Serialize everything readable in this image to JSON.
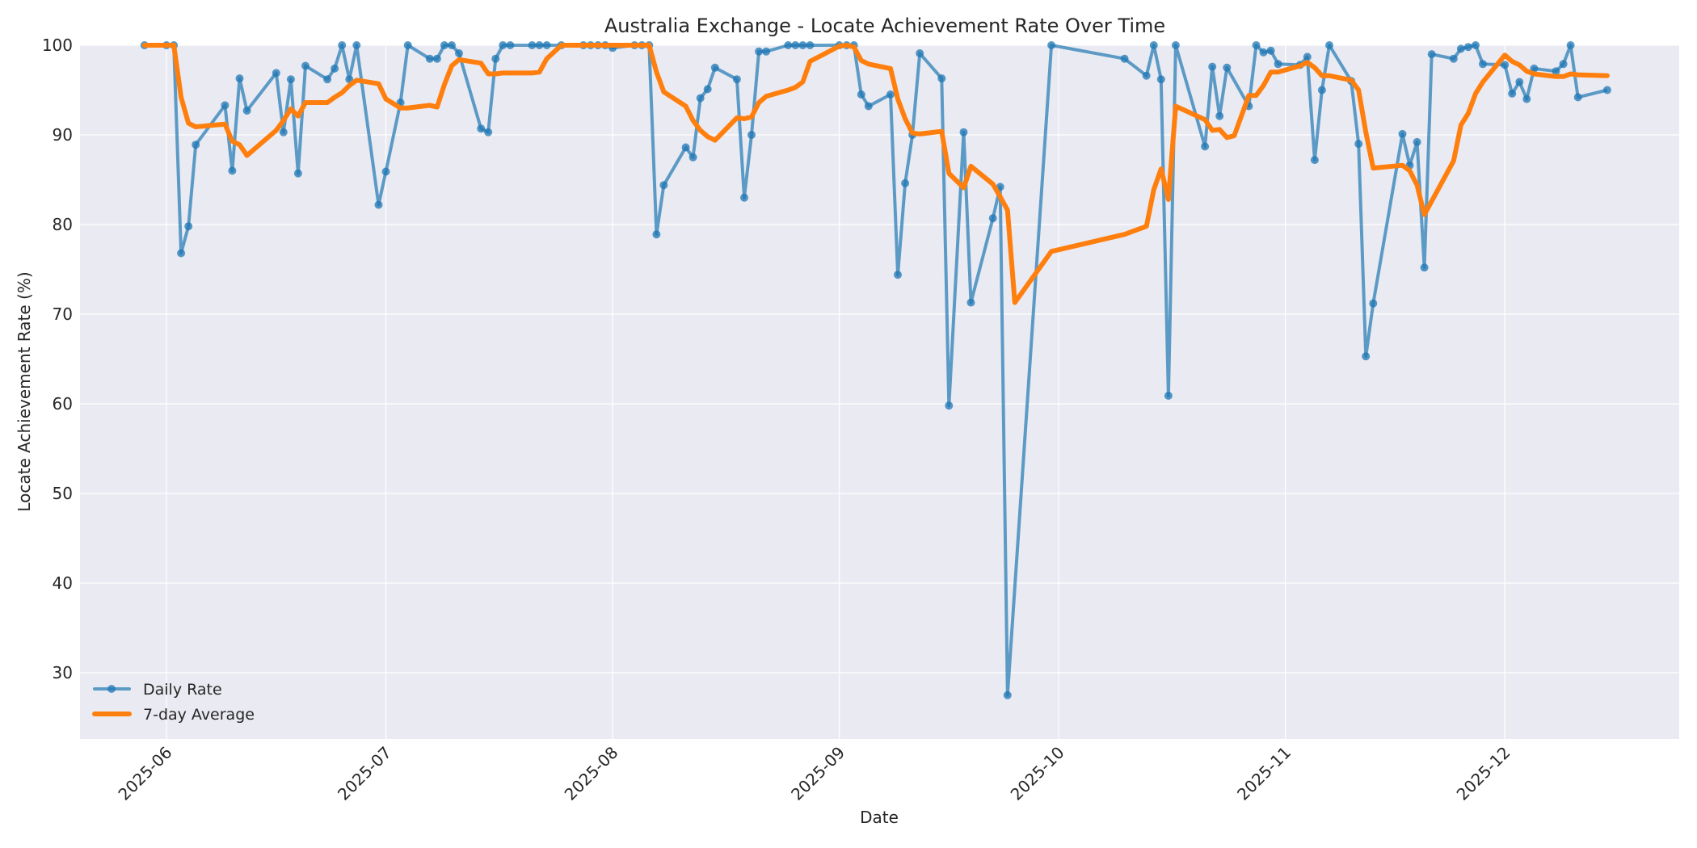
{
  "chart_data": {
    "type": "line",
    "title": "Australia Exchange - Locate Achievement Rate Over Time",
    "xlabel": "Date",
    "ylabel": "Locate Achievement Rate (%)",
    "ylim": [
      22.6,
      100
    ],
    "yticks": [
      30,
      40,
      50,
      60,
      70,
      80,
      90,
      100
    ],
    "xticks": [
      "2025-06",
      "2025-07",
      "2025-08",
      "2025-09",
      "2025-10",
      "2025-11",
      "2025-12"
    ],
    "grid": true,
    "legend_position": "lower left",
    "colors": {
      "daily": "#1f77b4",
      "average": "#ff7f0e",
      "background": "#eaeaf2",
      "grid": "#ffffff"
    },
    "series": [
      {
        "name": "Daily Rate",
        "style": "line+markers",
        "points": [
          [
            "2025-05-29",
            100
          ],
          [
            "2025-06-01",
            100
          ],
          [
            "2025-06-02",
            100
          ],
          [
            "2025-06-03",
            76.8
          ],
          [
            "2025-06-04",
            79.8
          ],
          [
            "2025-06-05",
            88.9
          ],
          [
            "2025-06-09",
            93.3
          ],
          [
            "2025-06-10",
            86.0
          ],
          [
            "2025-06-11",
            96.3
          ],
          [
            "2025-06-12",
            92.7
          ],
          [
            "2025-06-16",
            96.9
          ],
          [
            "2025-06-17",
            90.3
          ],
          [
            "2025-06-18",
            96.2
          ],
          [
            "2025-06-19",
            85.7
          ],
          [
            "2025-06-20",
            97.7
          ],
          [
            "2025-06-23",
            96.2
          ],
          [
            "2025-06-24",
            97.4
          ],
          [
            "2025-06-25",
            100
          ],
          [
            "2025-06-26",
            96.2
          ],
          [
            "2025-06-27",
            100
          ],
          [
            "2025-06-30",
            82.2
          ],
          [
            "2025-07-01",
            85.9
          ],
          [
            "2025-07-03",
            93.6
          ],
          [
            "2025-07-04",
            100
          ],
          [
            "2025-07-07",
            98.5
          ],
          [
            "2025-07-08",
            98.5
          ],
          [
            "2025-07-09",
            100
          ],
          [
            "2025-07-10",
            100
          ],
          [
            "2025-07-11",
            99.1
          ],
          [
            "2025-07-14",
            90.7
          ],
          [
            "2025-07-15",
            90.3
          ],
          [
            "2025-07-16",
            98.5
          ],
          [
            "2025-07-17",
            100
          ],
          [
            "2025-07-18",
            100
          ],
          [
            "2025-07-21",
            100
          ],
          [
            "2025-07-22",
            100
          ],
          [
            "2025-07-23",
            100
          ],
          [
            "2025-07-25",
            100
          ],
          [
            "2025-07-28",
            100
          ],
          [
            "2025-07-29",
            100
          ],
          [
            "2025-07-30",
            100
          ],
          [
            "2025-07-31",
            100
          ],
          [
            "2025-08-01",
            99.7
          ],
          [
            "2025-08-04",
            100
          ],
          [
            "2025-08-05",
            100
          ],
          [
            "2025-08-06",
            100
          ],
          [
            "2025-08-07",
            78.9
          ],
          [
            "2025-08-08",
            84.4
          ],
          [
            "2025-08-11",
            88.6
          ],
          [
            "2025-08-12",
            87.5
          ],
          [
            "2025-08-13",
            94.1
          ],
          [
            "2025-08-14",
            95.1
          ],
          [
            "2025-08-15",
            97.5
          ],
          [
            "2025-08-18",
            96.2
          ],
          [
            "2025-08-19",
            83.0
          ],
          [
            "2025-08-20",
            90.0
          ],
          [
            "2025-08-21",
            99.3
          ],
          [
            "2025-08-22",
            99.3
          ],
          [
            "2025-08-25",
            100
          ],
          [
            "2025-08-26",
            100
          ],
          [
            "2025-08-27",
            100
          ],
          [
            "2025-08-28",
            100
          ],
          [
            "2025-09-01",
            100
          ],
          [
            "2025-09-02",
            100
          ],
          [
            "2025-09-03",
            100
          ],
          [
            "2025-09-04",
            94.5
          ],
          [
            "2025-09-05",
            93.2
          ],
          [
            "2025-09-08",
            94.5
          ],
          [
            "2025-09-09",
            74.4
          ],
          [
            "2025-09-10",
            84.6
          ],
          [
            "2025-09-11",
            90.0
          ],
          [
            "2025-09-12",
            99.1
          ],
          [
            "2025-09-15",
            96.3
          ],
          [
            "2025-09-16",
            59.8
          ],
          [
            "2025-09-18",
            90.3
          ],
          [
            "2025-09-19",
            71.3
          ],
          [
            "2025-09-22",
            80.7
          ],
          [
            "2025-09-23",
            84.2
          ],
          [
            "2025-09-24",
            27.5
          ],
          [
            "2025-09-30",
            100
          ],
          [
            "2025-10-10",
            98.5
          ],
          [
            "2025-10-13",
            96.6
          ],
          [
            "2025-10-14",
            100
          ],
          [
            "2025-10-15",
            96.2
          ],
          [
            "2025-10-16",
            60.9
          ],
          [
            "2025-10-17",
            100
          ],
          [
            "2025-10-21",
            88.7
          ],
          [
            "2025-10-22",
            97.6
          ],
          [
            "2025-10-23",
            92.1
          ],
          [
            "2025-10-24",
            97.5
          ],
          [
            "2025-10-27",
            93.2
          ],
          [
            "2025-10-28",
            100
          ],
          [
            "2025-10-29",
            99.2
          ],
          [
            "2025-10-30",
            99.4
          ],
          [
            "2025-10-31",
            97.9
          ],
          [
            "2025-11-03",
            97.8
          ],
          [
            "2025-11-04",
            98.7
          ],
          [
            "2025-11-05",
            87.2
          ],
          [
            "2025-11-06",
            95.0
          ],
          [
            "2025-11-07",
            100
          ],
          [
            "2025-11-10",
            96.0
          ],
          [
            "2025-11-11",
            89.0
          ],
          [
            "2025-11-12",
            65.3
          ],
          [
            "2025-11-13",
            71.2
          ],
          [
            "2025-11-17",
            90.1
          ],
          [
            "2025-11-18",
            86.6
          ],
          [
            "2025-11-19",
            89.2
          ],
          [
            "2025-11-20",
            75.2
          ],
          [
            "2025-11-21",
            99.0
          ],
          [
            "2025-11-24",
            98.5
          ],
          [
            "2025-11-25",
            99.6
          ],
          [
            "2025-11-26",
            99.8
          ],
          [
            "2025-11-27",
            100
          ],
          [
            "2025-11-28",
            97.9
          ],
          [
            "2025-12-01",
            97.8
          ],
          [
            "2025-12-02",
            94.6
          ],
          [
            "2025-12-03",
            95.9
          ],
          [
            "2025-12-04",
            94.0
          ],
          [
            "2025-12-05",
            97.4
          ],
          [
            "2025-12-08",
            97.1
          ],
          [
            "2025-12-09",
            97.9
          ],
          [
            "2025-12-10",
            100
          ],
          [
            "2025-12-11",
            94.2
          ],
          [
            "2025-12-15",
            95.0
          ]
        ]
      },
      {
        "name": "7-day Average",
        "style": "line",
        "points": [
          [
            "2025-05-29",
            100
          ],
          [
            "2025-06-01",
            100
          ],
          [
            "2025-06-02",
            100
          ],
          [
            "2025-06-03",
            94.2
          ],
          [
            "2025-06-04",
            91.3
          ],
          [
            "2025-06-05",
            90.9
          ],
          [
            "2025-06-09",
            91.2
          ],
          [
            "2025-06-10",
            89.3
          ],
          [
            "2025-06-11",
            88.9
          ],
          [
            "2025-06-12",
            87.7
          ],
          [
            "2025-06-16",
            90.5
          ],
          [
            "2025-06-17",
            91.6
          ],
          [
            "2025-06-18",
            92.9
          ],
          [
            "2025-06-19",
            92.1
          ],
          [
            "2025-06-20",
            93.6
          ],
          [
            "2025-06-23",
            93.6
          ],
          [
            "2025-06-24",
            94.2
          ],
          [
            "2025-06-25",
            94.7
          ],
          [
            "2025-06-26",
            95.5
          ],
          [
            "2025-06-27",
            96.1
          ],
          [
            "2025-06-30",
            95.7
          ],
          [
            "2025-07-01",
            94.0
          ],
          [
            "2025-07-03",
            93.0
          ],
          [
            "2025-07-04",
            93.0
          ],
          [
            "2025-07-07",
            93.3
          ],
          [
            "2025-07-08",
            93.1
          ],
          [
            "2025-07-09",
            95.6
          ],
          [
            "2025-07-10",
            97.7
          ],
          [
            "2025-07-11",
            98.4
          ],
          [
            "2025-07-14",
            98.0
          ],
          [
            "2025-07-15",
            96.8
          ],
          [
            "2025-07-16",
            96.8
          ],
          [
            "2025-07-17",
            96.9
          ],
          [
            "2025-07-18",
            96.9
          ],
          [
            "2025-07-21",
            96.9
          ],
          [
            "2025-07-22",
            97.0
          ],
          [
            "2025-07-23",
            98.5
          ],
          [
            "2025-07-25",
            100
          ],
          [
            "2025-07-28",
            100
          ],
          [
            "2025-07-29",
            100
          ],
          [
            "2025-07-30",
            100
          ],
          [
            "2025-07-31",
            100
          ],
          [
            "2025-08-01",
            100
          ],
          [
            "2025-08-04",
            100
          ],
          [
            "2025-08-05",
            100
          ],
          [
            "2025-08-06",
            100
          ],
          [
            "2025-08-07",
            97.0
          ],
          [
            "2025-08-08",
            94.8
          ],
          [
            "2025-08-11",
            93.2
          ],
          [
            "2025-08-12",
            91.6
          ],
          [
            "2025-08-13",
            90.5
          ],
          [
            "2025-08-14",
            89.8
          ],
          [
            "2025-08-15",
            89.4
          ],
          [
            "2025-08-18",
            91.9
          ],
          [
            "2025-08-19",
            91.8
          ],
          [
            "2025-08-20",
            92.0
          ],
          [
            "2025-08-21",
            93.6
          ],
          [
            "2025-08-22",
            94.3
          ],
          [
            "2025-08-25",
            95.0
          ],
          [
            "2025-08-26",
            95.3
          ],
          [
            "2025-08-27",
            95.9
          ],
          [
            "2025-08-28",
            98.2
          ],
          [
            "2025-09-01",
            99.9
          ],
          [
            "2025-09-02",
            100
          ],
          [
            "2025-09-03",
            99.8
          ],
          [
            "2025-09-04",
            98.3
          ],
          [
            "2025-09-05",
            97.9
          ],
          [
            "2025-09-08",
            97.4
          ],
          [
            "2025-09-09",
            94.0
          ],
          [
            "2025-09-10",
            91.8
          ],
          [
            "2025-09-11",
            90.2
          ],
          [
            "2025-09-12",
            90.1
          ],
          [
            "2025-09-15",
            90.4
          ],
          [
            "2025-09-16",
            85.7
          ],
          [
            "2025-09-18",
            84.1
          ],
          [
            "2025-09-19",
            86.5
          ],
          [
            "2025-09-22",
            84.5
          ],
          [
            "2025-09-23",
            83.1
          ],
          [
            "2025-09-24",
            81.6
          ],
          [
            "2025-09-25",
            71.3
          ],
          [
            "2025-09-30",
            77.0
          ],
          [
            "2025-10-10",
            78.9
          ],
          [
            "2025-10-13",
            79.8
          ],
          [
            "2025-10-14",
            83.9
          ],
          [
            "2025-10-15",
            86.2
          ],
          [
            "2025-10-16",
            82.8
          ],
          [
            "2025-10-17",
            93.2
          ],
          [
            "2025-10-21",
            91.7
          ],
          [
            "2025-10-22",
            90.5
          ],
          [
            "2025-10-23",
            90.6
          ],
          [
            "2025-10-24",
            89.7
          ],
          [
            "2025-10-25",
            89.9
          ],
          [
            "2025-10-27",
            94.4
          ],
          [
            "2025-10-28",
            94.4
          ],
          [
            "2025-10-29",
            95.5
          ],
          [
            "2025-10-30",
            97.0
          ],
          [
            "2025-10-31",
            97.0
          ],
          [
            "2025-11-03",
            97.7
          ],
          [
            "2025-11-04",
            98.1
          ],
          [
            "2025-11-05",
            97.5
          ],
          [
            "2025-11-06",
            96.6
          ],
          [
            "2025-11-07",
            96.6
          ],
          [
            "2025-11-10",
            96.1
          ],
          [
            "2025-11-11",
            95.0
          ],
          [
            "2025-11-12",
            90.3
          ],
          [
            "2025-11-13",
            86.3
          ],
          [
            "2025-11-17",
            86.6
          ],
          [
            "2025-11-18",
            86.0
          ],
          [
            "2025-11-19",
            84.4
          ],
          [
            "2025-11-20",
            81.1
          ],
          [
            "2025-11-24",
            87.1
          ],
          [
            "2025-11-25",
            91.1
          ],
          [
            "2025-11-26",
            92.4
          ],
          [
            "2025-11-27",
            94.6
          ],
          [
            "2025-11-28",
            95.9
          ],
          [
            "2025-12-01",
            98.9
          ],
          [
            "2025-12-02",
            98.2
          ],
          [
            "2025-12-03",
            97.8
          ],
          [
            "2025-12-04",
            97.1
          ],
          [
            "2025-12-05",
            96.8
          ],
          [
            "2025-12-08",
            96.5
          ],
          [
            "2025-12-09",
            96.5
          ],
          [
            "2025-12-10",
            96.8
          ],
          [
            "2025-12-11",
            96.7
          ],
          [
            "2025-12-15",
            96.6
          ]
        ]
      }
    ]
  }
}
